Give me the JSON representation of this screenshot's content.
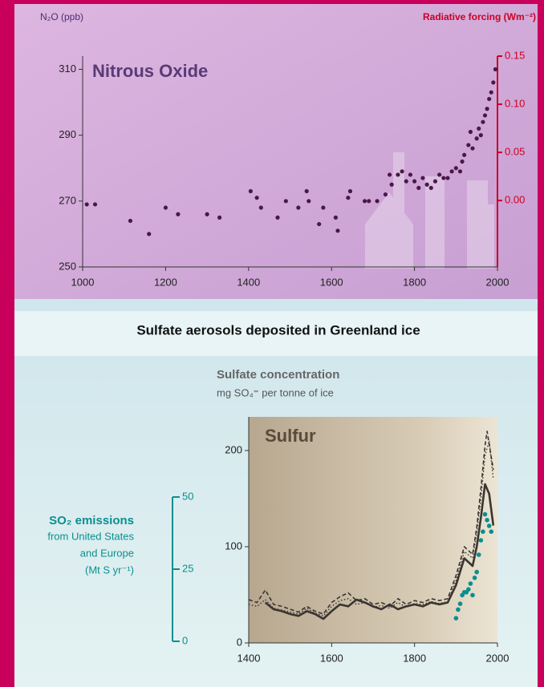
{
  "heading": "Sulfate aerosols deposited in Greenland ice",
  "chart_data": [
    {
      "type": "scatter",
      "title": "Nitrous Oxide",
      "ylabel": "N₂O (ppb)",
      "y2label": "Radiative forcing (Wm⁻²)",
      "x": [
        1010,
        1030,
        1115,
        1160,
        1200,
        1230,
        1300,
        1330,
        1405,
        1420,
        1430,
        1470,
        1490,
        1520,
        1540,
        1545,
        1570,
        1580,
        1610,
        1615,
        1640,
        1645,
        1680,
        1690,
        1710,
        1730,
        1740,
        1745,
        1760,
        1770,
        1780,
        1790,
        1800,
        1810,
        1820,
        1830,
        1840,
        1850,
        1860,
        1870,
        1880,
        1890,
        1900,
        1910,
        1915,
        1920,
        1930,
        1935,
        1940,
        1950,
        1955,
        1960,
        1965,
        1970,
        1975,
        1980,
        1985,
        1990,
        1995
      ],
      "values": [
        269,
        269,
        264,
        260,
        268,
        266,
        266,
        265,
        273,
        271,
        268,
        265,
        270,
        268,
        273,
        270,
        263,
        268,
        265,
        261,
        271,
        273,
        270,
        270,
        270,
        272,
        278,
        275,
        278,
        279,
        276,
        278,
        276,
        274,
        277,
        275,
        274,
        276,
        278,
        277,
        277,
        279,
        280,
        279,
        282,
        284,
        287,
        291,
        286,
        289,
        292,
        290,
        294,
        296,
        298,
        301,
        303,
        306,
        310
      ],
      "color": "#4a1848",
      "xlim": [
        1000,
        2000
      ],
      "xticks": [
        1000,
        1200,
        1400,
        1600,
        1800,
        2000
      ],
      "ylim": [
        250,
        314
      ],
      "yticks": [
        250,
        270,
        290,
        310
      ],
      "y2lim": [
        -0.069,
        0.15
      ],
      "y2ticks": [
        {
          "value": 0,
          "label": "0.00"
        },
        {
          "value": 0.05,
          "label": "0.05"
        },
        {
          "value": 0.1,
          "label": "0.10"
        },
        {
          "value": 0.15,
          "label": "0.15"
        }
      ],
      "y2color": "#cc0022"
    },
    {
      "type": "line",
      "title": "Sulfur",
      "ylabel": "Sulfate concentration",
      "ylabel_sub": "mg SO₄⁼ per tonne of ice",
      "y2label": [
        "SO₂ emissions",
        "from United States",
        "and Europe",
        "(Mt S yr⁻¹)"
      ],
      "series": [
        {
          "style": "solid",
          "color": "#3a3530",
          "x": [
            1440,
            1460,
            1480,
            1500,
            1520,
            1540,
            1560,
            1580,
            1600,
            1620,
            1640,
            1660,
            1680,
            1700,
            1720,
            1740,
            1760,
            1780,
            1800,
            1820,
            1840,
            1860,
            1880,
            1900,
            1920,
            1940,
            1950,
            1960,
            1970,
            1980,
            1990
          ],
          "values": [
            42,
            35,
            33,
            30,
            28,
            33,
            30,
            25,
            33,
            40,
            38,
            45,
            42,
            38,
            35,
            40,
            35,
            38,
            40,
            38,
            42,
            40,
            42,
            60,
            88,
            80,
            100,
            130,
            165,
            155,
            122
          ]
        },
        {
          "style": "dashed",
          "color": "#3a3530",
          "x": [
            1400,
            1420,
            1440,
            1460,
            1480,
            1500,
            1520,
            1540,
            1560,
            1580,
            1600,
            1620,
            1640,
            1660,
            1680,
            1700,
            1720,
            1740,
            1760,
            1780,
            1800,
            1820,
            1840,
            1860,
            1880,
            1900,
            1920,
            1940,
            1950,
            1960,
            1970,
            1975,
            1990
          ],
          "values": [
            45,
            42,
            55,
            40,
            38,
            35,
            32,
            38,
            33,
            30,
            42,
            48,
            52,
            44,
            46,
            40,
            42,
            38,
            46,
            40,
            44,
            42,
            46,
            44,
            46,
            70,
            100,
            92,
            120,
            160,
            205,
            220,
            180
          ]
        },
        {
          "style": "dotted",
          "color": "#3a3530",
          "x": [
            1400,
            1420,
            1440,
            1460,
            1480,
            1500,
            1520,
            1540,
            1560,
            1580,
            1600,
            1620,
            1640,
            1660,
            1680,
            1700,
            1720,
            1740,
            1760,
            1780,
            1800,
            1820,
            1840,
            1860,
            1880,
            1900,
            1920,
            1940,
            1950,
            1960,
            1970,
            1980,
            1990
          ],
          "values": [
            40,
            38,
            45,
            36,
            34,
            32,
            30,
            36,
            31,
            28,
            38,
            44,
            46,
            40,
            42,
            37,
            39,
            36,
            42,
            37,
            41,
            40,
            43,
            41,
            43,
            65,
            95,
            88,
            115,
            150,
            195,
            210,
            170
          ]
        },
        {
          "style": "dots",
          "axis": "y2",
          "color": "#0a8f8f",
          "x": [
            1900,
            1905,
            1910,
            1915,
            1920,
            1925,
            1930,
            1935,
            1940,
            1945,
            1950,
            1955,
            1960,
            1965,
            1970,
            1975,
            1980,
            1985
          ],
          "values": [
            8,
            11,
            13,
            16,
            17,
            17,
            18,
            20,
            16,
            22,
            24,
            30,
            35,
            38,
            44,
            42,
            40,
            38
          ]
        }
      ],
      "xlim": [
        1400,
        2000
      ],
      "xticks": [
        1400,
        1600,
        1800,
        2000
      ],
      "ylim": [
        0,
        235
      ],
      "yticks": [
        0,
        100,
        200
      ],
      "y2lim": [
        0,
        50
      ],
      "y2ticks": [
        0,
        25,
        50
      ],
      "y2color": "#0a8f8f"
    }
  ]
}
